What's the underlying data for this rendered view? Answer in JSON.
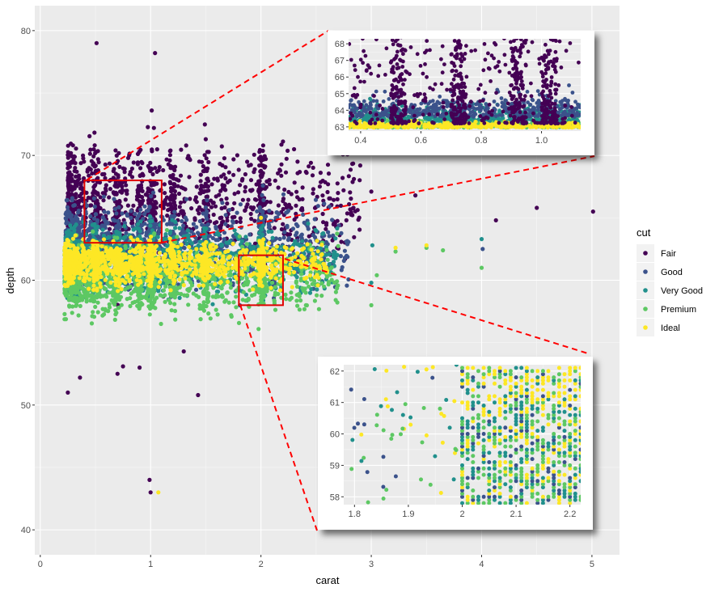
{
  "chart_data": [
    {
      "type": "scatter",
      "role": "main",
      "xlabel": "carat",
      "ylabel": "depth",
      "xlim": [
        -0.05,
        5.25
      ],
      "ylim": [
        38,
        82
      ],
      "x_ticks": [
        0,
        1,
        2,
        3,
        4,
        5
      ],
      "y_ticks": [
        40,
        50,
        60,
        70,
        80
      ],
      "grid": true,
      "legend": {
        "title": "cut",
        "position": "right",
        "entries": [
          {
            "label": "Fair",
            "color": "#440154"
          },
          {
            "label": "Good",
            "color": "#3b528b"
          },
          {
            "label": "Very Good",
            "color": "#21908c"
          },
          {
            "label": "Premium",
            "color": "#5dc863"
          },
          {
            "label": "Ideal",
            "color": "#fde725"
          }
        ]
      },
      "clusters": [
        {
          "series": "Fair",
          "x_range": [
            0.25,
            2.9
          ],
          "y_center": 65.3,
          "y_spread": 2.4
        },
        {
          "series": "Good",
          "x_range": [
            0.23,
            2.8
          ],
          "y_center": 62.7,
          "y_spread": 1.6
        },
        {
          "series": "Very Good",
          "x_range": [
            0.23,
            2.7
          ],
          "y_center": 61.6,
          "y_spread": 1.3
        },
        {
          "series": "Premium",
          "x_range": [
            0.22,
            2.7
          ],
          "y_center": 60.2,
          "y_spread": 1.3
        },
        {
          "series": "Ideal",
          "x_range": [
            0.22,
            2.6
          ],
          "y_center": 61.4,
          "y_spread": 0.8
        }
      ],
      "points": [
        {
          "series": "Fair",
          "x": 0.51,
          "y": 79.0
        },
        {
          "series": "Fair",
          "x": 1.04,
          "y": 78.2
        },
        {
          "series": "Fair",
          "x": 1.01,
          "y": 73.6
        },
        {
          "series": "Fair",
          "x": 1.03,
          "y": 72.2
        },
        {
          "series": "Fair",
          "x": 0.99,
          "y": 44.0
        },
        {
          "series": "Fair",
          "x": 1.0,
          "y": 43.0
        },
        {
          "series": "Fair",
          "x": 0.25,
          "y": 51.0
        },
        {
          "series": "Fair",
          "x": 1.43,
          "y": 50.8
        },
        {
          "series": "Fair",
          "x": 1.5,
          "y": 71.3
        },
        {
          "series": "Fair",
          "x": 2.02,
          "y": 70.8
        },
        {
          "series": "Fair",
          "x": 2.3,
          "y": 70.5
        },
        {
          "series": "Fair",
          "x": 2.74,
          "y": 68.2
        },
        {
          "series": "Fair",
          "x": 3.0,
          "y": 67.1
        },
        {
          "series": "Fair",
          "x": 3.4,
          "y": 66.8
        },
        {
          "series": "Fair",
          "x": 4.13,
          "y": 64.8
        },
        {
          "series": "Fair",
          "x": 4.5,
          "y": 65.8
        },
        {
          "series": "Fair",
          "x": 5.01,
          "y": 65.5
        },
        {
          "series": "Fair",
          "x": 0.75,
          "y": 53.1
        },
        {
          "series": "Fair",
          "x": 0.9,
          "y": 53.0
        },
        {
          "series": "Fair",
          "x": 1.3,
          "y": 54.3
        },
        {
          "series": "Fair",
          "x": 0.7,
          "y": 52.5
        },
        {
          "series": "Fair",
          "x": 0.36,
          "y": 52.2
        },
        {
          "series": "Good",
          "x": 4.01,
          "y": 62.5
        },
        {
          "series": "Very Good",
          "x": 4.0,
          "y": 63.3
        },
        {
          "series": "Very Good",
          "x": 3.01,
          "y": 62.8
        },
        {
          "series": "Very Good",
          "x": 3.0,
          "y": 59.8
        },
        {
          "series": "Premium",
          "x": 3.05,
          "y": 60.4
        },
        {
          "series": "Premium",
          "x": 3.22,
          "y": 62.3
        },
        {
          "series": "Premium",
          "x": 3.5,
          "y": 62.6
        },
        {
          "series": "Premium",
          "x": 3.65,
          "y": 62.4
        },
        {
          "series": "Premium",
          "x": 4.0,
          "y": 61.0
        },
        {
          "series": "Premium",
          "x": 3.0,
          "y": 58.0
        },
        {
          "series": "Ideal",
          "x": 3.22,
          "y": 62.6
        },
        {
          "series": "Ideal",
          "x": 3.5,
          "y": 62.8
        },
        {
          "series": "Ideal",
          "x": 1.07,
          "y": 43.0
        },
        {
          "series": "Ideal",
          "x": 2.0,
          "y": 65.0
        }
      ],
      "zoom_regions": [
        {
          "x_range": [
            0.4,
            1.1
          ],
          "y_range": [
            63,
            68
          ]
        },
        {
          "x_range": [
            1.8,
            2.2
          ],
          "y_range": [
            58,
            62
          ]
        }
      ]
    },
    {
      "type": "scatter",
      "role": "zoom-inset",
      "xlim": [
        0.36,
        1.13
      ],
      "ylim": [
        62.75,
        68.3
      ],
      "x_ticks": [
        0.4,
        0.6,
        0.8,
        1.0
      ],
      "x_tick_labels": [
        "0.4",
        "0.6",
        "0.8",
        "1.0"
      ],
      "y_ticks": [
        63,
        64,
        65,
        66,
        67,
        68
      ],
      "grid": true,
      "vertical_streaks_x": [
        0.5,
        0.7,
        0.9,
        1.0
      ]
    },
    {
      "type": "scatter",
      "role": "zoom-inset",
      "xlim": [
        1.78,
        2.22
      ],
      "ylim": [
        57.75,
        62.2
      ],
      "x_ticks": [
        1.8,
        1.9,
        2.0,
        2.1,
        2.2
      ],
      "y_ticks": [
        58,
        59,
        60,
        61,
        62
      ],
      "grid": true,
      "dense_from_x": 2.0
    }
  ]
}
